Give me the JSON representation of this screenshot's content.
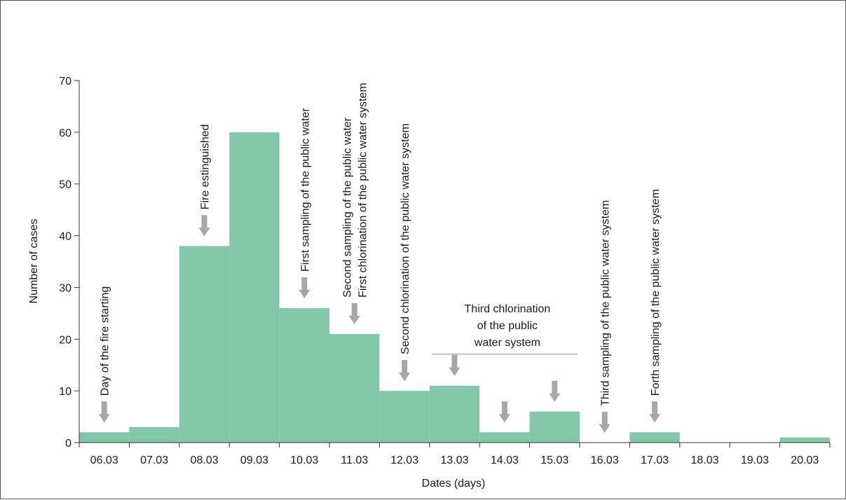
{
  "chart_data": {
    "type": "bar",
    "title": "",
    "xlabel": "Dates (days)",
    "ylabel": "Number of cases",
    "ylim": [
      0,
      70
    ],
    "yticks": [
      0,
      10,
      20,
      30,
      40,
      50,
      60,
      70
    ],
    "grid": false,
    "bar_color": "#82c8a8",
    "arrow_color": "#a7a7a7",
    "categories": [
      "06.03",
      "07.03",
      "08.03",
      "09.03",
      "10.03",
      "11.03",
      "12.03",
      "13.03",
      "14.03",
      "15.03",
      "16.03",
      "17.03",
      "18.03",
      "19.03",
      "20.03"
    ],
    "values": [
      2,
      3,
      38,
      60,
      26,
      21,
      10,
      11,
      2,
      6,
      0,
      2,
      0,
      0,
      1
    ],
    "annotations": [
      {
        "date": "06.03",
        "lines": [
          "Day of the fire starting"
        ]
      },
      {
        "date": "08.03",
        "lines": [
          "Fire estinguished"
        ]
      },
      {
        "date": "10.03",
        "lines": [
          "First sampling of the public water"
        ]
      },
      {
        "date": "11.03",
        "lines": [
          "Second sampling of the public water",
          "First chlorination of the public water system"
        ]
      },
      {
        "date": "12.03",
        "lines": [
          "Second chlorination of the public water system"
        ]
      },
      {
        "date": "16.03",
        "lines": [
          "Third sampling of the public water system"
        ]
      },
      {
        "date": "17.03",
        "lines": [
          "Forth sampling of the public water system"
        ]
      }
    ],
    "group_annotation": {
      "lines": [
        "Third chlorination",
        "of the public",
        "water system"
      ],
      "dates": [
        "13.03",
        "14.03",
        "15.03"
      ]
    }
  }
}
